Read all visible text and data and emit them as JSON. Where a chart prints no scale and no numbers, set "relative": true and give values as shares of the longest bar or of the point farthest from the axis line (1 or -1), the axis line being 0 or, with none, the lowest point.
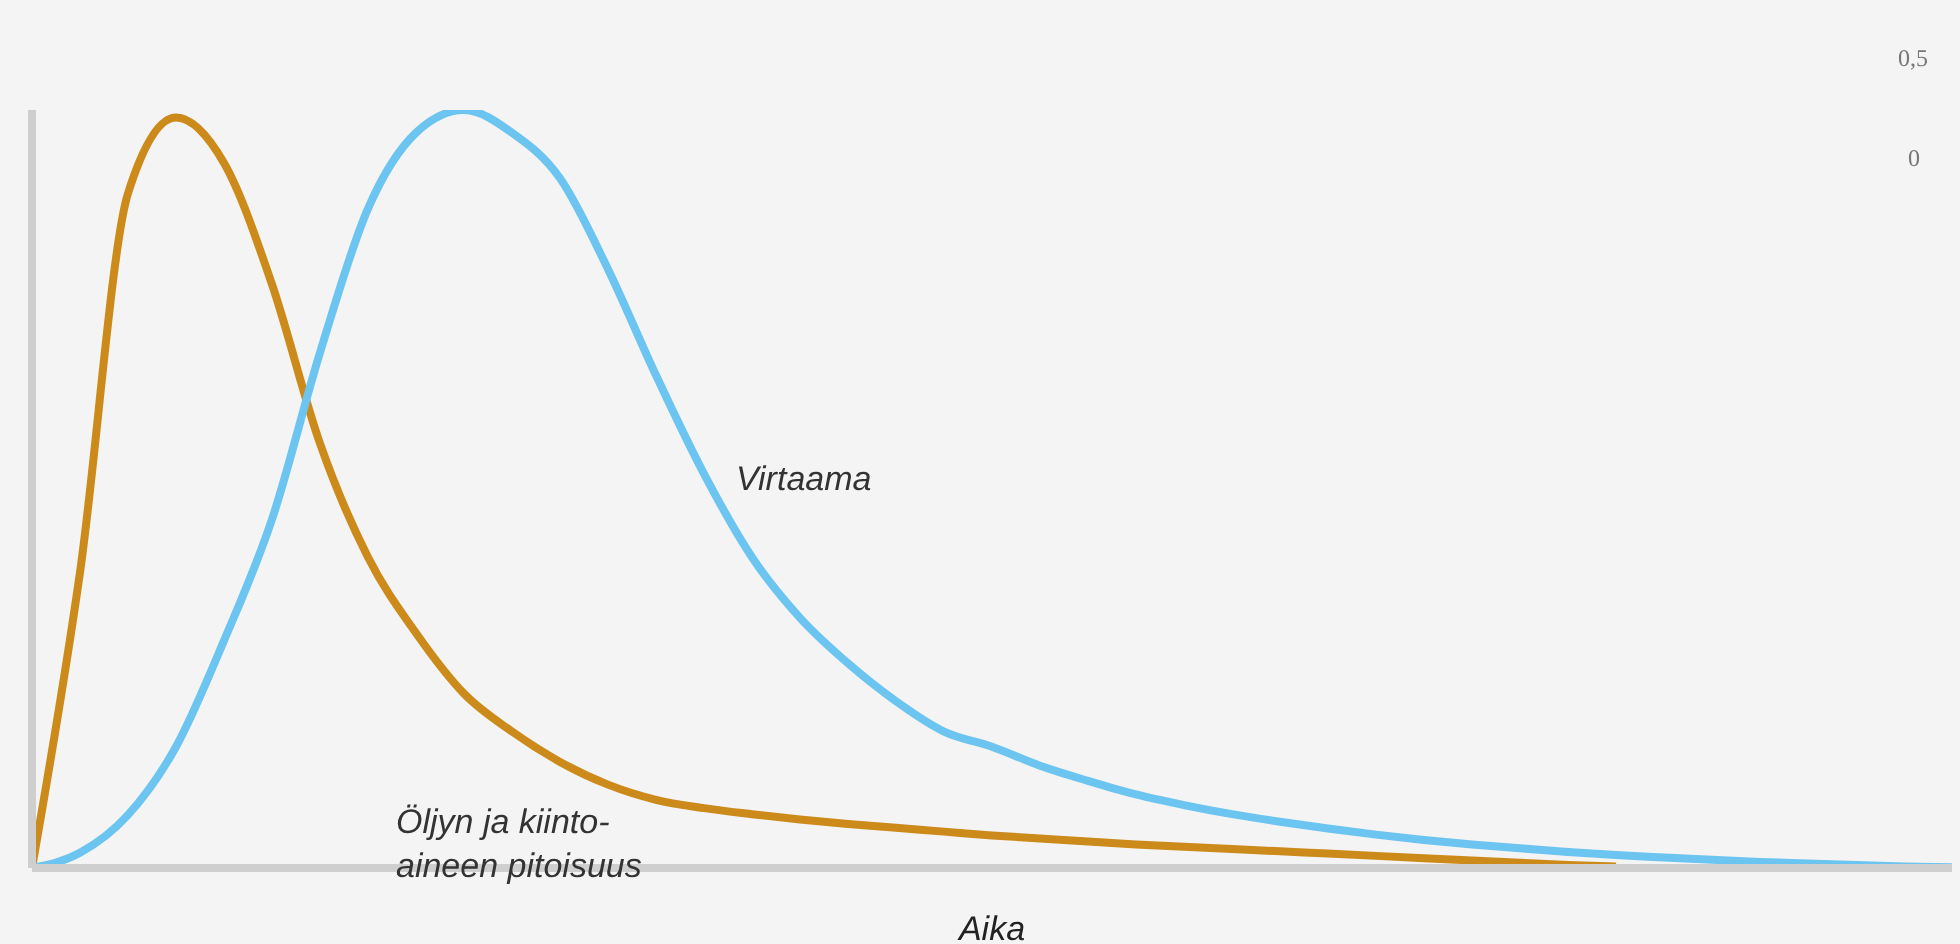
{
  "chart_data": {
    "type": "line",
    "relative": true,
    "xlabel": "Aika",
    "legend": false,
    "grid": false,
    "marker": "none",
    "line_style": "solid",
    "categories": [
      null,
      null,
      null,
      null,
      null,
      null,
      null,
      null,
      null,
      null,
      null,
      null,
      null,
      null,
      null,
      null,
      null,
      null,
      null,
      null,
      null,
      null,
      null,
      null,
      null,
      null,
      null,
      null,
      null,
      null,
      null,
      null,
      null,
      null,
      null,
      null,
      null,
      null,
      null,
      null,
      null
    ],
    "series": [
      {
        "name": "Öljyn ja kiinto-aineen pitoisuus",
        "color": "#cc8a1a",
        "values": [
          0,
          0.39,
          0.89,
          0.99,
          0.93,
          0.77,
          0.56,
          0.41,
          0.31,
          0.23,
          0.18,
          0.14,
          0.11,
          0.09,
          0.079,
          0.071,
          0.064,
          0.058,
          0.053,
          0.048,
          0.043,
          0.039,
          0.035,
          0.031,
          0.028,
          0.025,
          0.022,
          0.019,
          0.016,
          0.013,
          0.01,
          0.007,
          0.004,
          0.002,
          null,
          null,
          null,
          null,
          null,
          null,
          null
        ]
      },
      {
        "name": "Virtaama",
        "color": "#6cc4f0",
        "values": [
          0,
          0.02,
          0.07,
          0.16,
          0.3,
          0.46,
          0.68,
          0.87,
          0.97,
          1,
          0.97,
          0.91,
          0.79,
          0.65,
          0.52,
          0.41,
          0.33,
          0.27,
          0.22,
          0.18,
          0.16,
          0.135,
          0.115,
          0.097,
          0.083,
          0.071,
          0.061,
          0.052,
          0.044,
          0.037,
          0.031,
          0.026,
          0.021,
          0.017,
          0.014,
          0.011,
          0.008,
          0.006,
          0.004,
          0.002,
          0.001
        ]
      }
    ],
    "annotations": [
      "0,5",
      "0"
    ]
  }
}
